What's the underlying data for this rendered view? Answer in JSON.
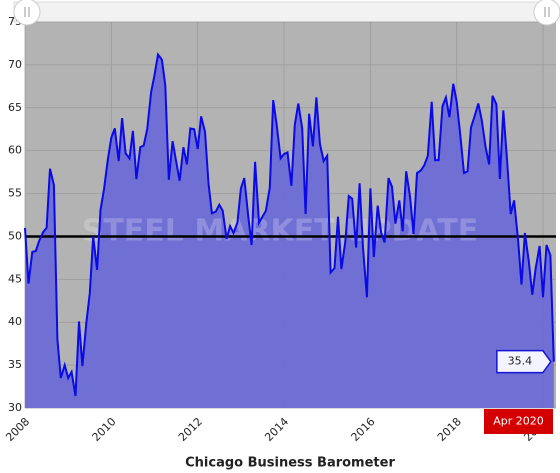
{
  "chart_data": {
    "type": "area",
    "title": "Chicago Business Barometer",
    "watermark": "STEEL MARKET UPDATE",
    "highlight_label": "Apr 2020",
    "reference_line": 50,
    "color": "#6b6bd6",
    "line_color": "#0a0ae8",
    "background": "#b3b3b3",
    "grid": true,
    "xlim": [
      2008,
      2020.3
    ],
    "xticks": [
      2008,
      2010,
      2012,
      2014,
      2016,
      2018,
      2020
    ],
    "ylim": [
      30,
      75
    ],
    "yticks": [
      30,
      35,
      40,
      45,
      50,
      55,
      60,
      65,
      70,
      75
    ],
    "x": [
      2008,
      2008.08,
      2008.17,
      2008.25,
      2008.33,
      2008.42,
      2008.5,
      2008.58,
      2008.67,
      2008.75,
      2008.83,
      2008.92,
      2009,
      2009.08,
      2009.17,
      2009.25,
      2009.33,
      2009.42,
      2009.5,
      2009.58,
      2009.67,
      2009.75,
      2009.83,
      2009.92,
      2010,
      2010.08,
      2010.17,
      2010.25,
      2010.33,
      2010.42,
      2010.5,
      2010.58,
      2010.67,
      2010.75,
      2010.83,
      2010.92,
      2011,
      2011.08,
      2011.17,
      2011.25,
      2011.33,
      2011.42,
      2011.5,
      2011.58,
      2011.67,
      2011.75,
      2011.83,
      2011.92,
      2012,
      2012.08,
      2012.17,
      2012.25,
      2012.33,
      2012.42,
      2012.5,
      2012.58,
      2012.67,
      2012.75,
      2012.83,
      2012.92,
      2013,
      2013.08,
      2013.17,
      2013.25,
      2013.33,
      2013.42,
      2013.5,
      2013.58,
      2013.67,
      2013.75,
      2013.83,
      2013.92,
      2014,
      2014.08,
      2014.17,
      2014.25,
      2014.33,
      2014.42,
      2014.5,
      2014.58,
      2014.67,
      2014.75,
      2014.83,
      2014.92,
      2015,
      2015.08,
      2015.17,
      2015.25,
      2015.33,
      2015.42,
      2015.5,
      2015.58,
      2015.67,
      2015.75,
      2015.83,
      2015.92,
      2016,
      2016.08,
      2016.17,
      2016.25,
      2016.33,
      2016.42,
      2016.5,
      2016.58,
      2016.67,
      2016.75,
      2016.83,
      2016.92,
      2017,
      2017.08,
      2017.17,
      2017.25,
      2017.33,
      2017.42,
      2017.5,
      2017.58,
      2017.67,
      2017.75,
      2017.83,
      2017.92,
      2018,
      2018.08,
      2018.17,
      2018.25,
      2018.33,
      2018.42,
      2018.5,
      2018.58,
      2018.67,
      2018.75,
      2018.83,
      2018.92,
      2019,
      2019.08,
      2019.17,
      2019.25,
      2019.33,
      2019.42,
      2019.5,
      2019.58,
      2019.67,
      2019.75,
      2019.83,
      2019.92,
      2020,
      2020.08,
      2020.17,
      2020.25
    ],
    "values": [
      51,
      44.5,
      48.2,
      48.3,
      49.5,
      50.5,
      51,
      57.9,
      56,
      38,
      33.5,
      35,
      33.5,
      34.2,
      31.4,
      40.1,
      34.9,
      39.9,
      43.4,
      50,
      46.1,
      53.1,
      55.5,
      59,
      61.5,
      62.6,
      58.8,
      63.8,
      59.7,
      59.1,
      62.3,
      56.7,
      60.4,
      60.6,
      62.5,
      66.8,
      68.8,
      71.2,
      70.6,
      67.6,
      56.6,
      61.1,
      58.8,
      56.5,
      60.4,
      58.4,
      62.6,
      62.5,
      60.2,
      64,
      62.2,
      56.2,
      52.7,
      52.9,
      53.7,
      53,
      49.7,
      51.2,
      50.4,
      51.6,
      55.6,
      56.8,
      52.4,
      49,
      58.7,
      51.6,
      52.3,
      53,
      55.7,
      65.9,
      63,
      59.1,
      59.6,
      59.8,
      55.9,
      63,
      65.5,
      62.6,
      52.6,
      64.3,
      60.5,
      66.2,
      60.8,
      58.8,
      59.4,
      45.8,
      46.3,
      52.3,
      46.2,
      49.4,
      54.7,
      54.4,
      48.7,
      56.2,
      48.7,
      42.9,
      55.6,
      47.6,
      53.6,
      50.4,
      49.3,
      56.8,
      55.8,
      51.5,
      54.2,
      50.6,
      57.6,
      54.6,
      50.3,
      57.4,
      57.7,
      58.3,
      59.4,
      65.7,
      58.9,
      58.9,
      65.2,
      66.2,
      63.9,
      67.8,
      65.7,
      61.9,
      57.4,
      57.6,
      62.7,
      64.1,
      65.5,
      63.6,
      60.4,
      58.4,
      66.4,
      65.4,
      56.7,
      64.7,
      58.7,
      52.6,
      54.2,
      49.7,
      44.4,
      50.4,
      47.1,
      43.2,
      46.3,
      48.9,
      42.9,
      49,
      47.8,
      35.4
    ]
  }
}
